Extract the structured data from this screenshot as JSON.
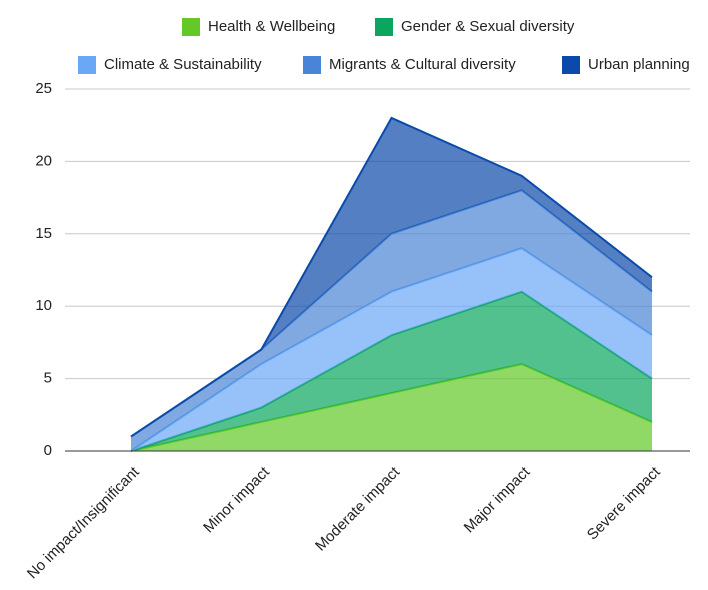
{
  "chart_data": {
    "type": "area",
    "stacked": true,
    "categories": [
      "No impact/Insignificant",
      "Minor impact",
      "Moderate impact",
      "Major impact",
      "Severe impact"
    ],
    "series": [
      {
        "name": "Health & Wellbeing",
        "color": "#62c926",
        "values": [
          0,
          2,
          4,
          6,
          2
        ]
      },
      {
        "name": "Gender & Sexual diversity",
        "color": "#0aa65e",
        "values": [
          0,
          1,
          4,
          5,
          3
        ]
      },
      {
        "name": "Climate & Sustainability",
        "color": "#6aa8f6",
        "values": [
          0,
          3,
          3,
          3,
          3
        ]
      },
      {
        "name": "Migrants & Cultural diversity",
        "color": "#4a84d6",
        "values": [
          1,
          1,
          4,
          4,
          3
        ]
      },
      {
        "name": "Urban planning",
        "color": "#0b4aaa",
        "values": [
          0,
          0,
          8,
          1,
          1
        ]
      }
    ],
    "ylim": [
      0,
      25
    ],
    "yticks": [
      0,
      5,
      10,
      15,
      20,
      25
    ],
    "grid": true,
    "legend": "top"
  }
}
